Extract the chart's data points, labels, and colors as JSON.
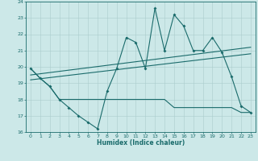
{
  "xlabel": "Humidex (Indice chaleur)",
  "background_color": "#cce8e8",
  "grid_color": "#aacccc",
  "line_color": "#1a6b6b",
  "xlim": [
    -0.5,
    23.5
  ],
  "ylim": [
    16,
    24
  ],
  "yticks": [
    16,
    17,
    18,
    19,
    20,
    21,
    22,
    23,
    24
  ],
  "xticks": [
    0,
    1,
    2,
    3,
    4,
    5,
    6,
    7,
    8,
    9,
    10,
    11,
    12,
    13,
    14,
    15,
    16,
    17,
    18,
    19,
    20,
    21,
    22,
    23
  ],
  "line1_x": [
    0,
    1,
    2,
    3,
    4,
    5,
    6,
    7,
    8,
    9,
    10,
    11,
    12,
    13,
    14,
    15,
    16,
    17,
    18,
    19,
    20,
    21,
    22,
    23
  ],
  "line1_y": [
    19.9,
    19.3,
    18.8,
    18.0,
    17.5,
    17.0,
    16.6,
    16.2,
    18.5,
    19.9,
    21.8,
    21.5,
    19.9,
    23.6,
    21.0,
    23.2,
    22.5,
    21.0,
    21.0,
    21.8,
    20.9,
    19.4,
    17.6,
    17.2
  ],
  "line2_x": [
    0,
    1,
    2,
    3,
    4,
    5,
    6,
    7,
    8,
    9,
    10,
    11,
    12,
    13,
    14,
    15,
    16,
    17,
    18,
    19,
    20,
    21,
    22,
    23
  ],
  "line2_y": [
    19.9,
    19.3,
    18.8,
    18.0,
    18.0,
    18.0,
    18.0,
    18.0,
    18.0,
    18.0,
    18.0,
    18.0,
    18.0,
    18.0,
    18.0,
    17.5,
    17.5,
    17.5,
    17.5,
    17.5,
    17.5,
    17.5,
    17.2,
    17.2
  ],
  "line3_x": [
    0,
    23
  ],
  "line3_y": [
    19.5,
    21.2
  ],
  "line4_x": [
    0,
    23
  ],
  "line4_y": [
    19.2,
    20.8
  ]
}
